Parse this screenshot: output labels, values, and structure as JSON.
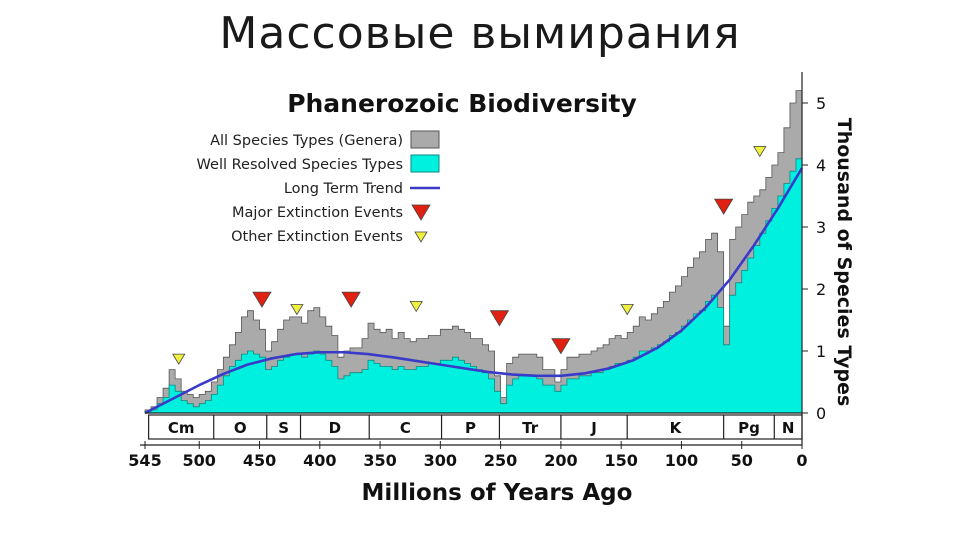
{
  "slide": {
    "title": "Массовые вымирания"
  },
  "chart_data": {
    "type": "area",
    "title": "Phanerozoic Biodiversity",
    "xlabel": "Millions of Years Ago",
    "ylabel": "Thousand of Species Types",
    "xlim": [
      545,
      0
    ],
    "ylim": [
      0,
      5.5
    ],
    "x_ticks": [
      545,
      500,
      450,
      400,
      350,
      300,
      250,
      200,
      150,
      100,
      50,
      0
    ],
    "y_ticks": [
      0,
      1,
      2,
      3,
      4,
      5
    ],
    "colors": {
      "all_genera": "#aaaaaa",
      "well_resolved": "#00f0e0",
      "trend": "#3a3ac8",
      "major": "#e02010",
      "other": "#f0f040"
    },
    "legend": [
      {
        "label": "All Species Types (Genera)",
        "kind": "all"
      },
      {
        "label": "Well Resolved Species Types",
        "kind": "resolved"
      },
      {
        "label": "Long Term Trend",
        "kind": "trend"
      },
      {
        "label": "Major Extinction Events",
        "kind": "major"
      },
      {
        "label": "Other Extinction Events",
        "kind": "other"
      }
    ],
    "periods": [
      {
        "label": "Cm",
        "start": 542,
        "end": 488
      },
      {
        "label": "O",
        "start": 488,
        "end": 444
      },
      {
        "label": "S",
        "start": 444,
        "end": 416
      },
      {
        "label": "D",
        "start": 416,
        "end": 359
      },
      {
        "label": "C",
        "start": 359,
        "end": 299
      },
      {
        "label": "P",
        "start": 299,
        "end": 251
      },
      {
        "label": "Tr",
        "start": 251,
        "end": 200
      },
      {
        "label": "J",
        "start": 200,
        "end": 145
      },
      {
        "label": "K",
        "start": 145,
        "end": 65
      },
      {
        "label": "Pg",
        "start": 65,
        "end": 23
      },
      {
        "label": "N",
        "start": 23,
        "end": 0
      }
    ],
    "series": [
      {
        "name": "All Species Types (Genera)",
        "kind": "all",
        "x": [
          545,
          540,
          535,
          530,
          525,
          520,
          515,
          510,
          505,
          500,
          495,
          490,
          485,
          480,
          475,
          470,
          465,
          460,
          455,
          450,
          445,
          440,
          435,
          430,
          425,
          420,
          415,
          410,
          405,
          400,
          395,
          390,
          385,
          380,
          375,
          370,
          365,
          360,
          355,
          350,
          345,
          340,
          335,
          330,
          325,
          320,
          315,
          310,
          305,
          300,
          295,
          290,
          285,
          280,
          275,
          270,
          265,
          260,
          255,
          250,
          245,
          240,
          235,
          230,
          225,
          220,
          215,
          210,
          205,
          200,
          195,
          190,
          185,
          180,
          175,
          170,
          165,
          160,
          155,
          150,
          145,
          140,
          135,
          130,
          125,
          120,
          115,
          110,
          105,
          100,
          95,
          90,
          85,
          80,
          75,
          70,
          65,
          60,
          55,
          50,
          45,
          40,
          35,
          30,
          25,
          20,
          15,
          10,
          5,
          0
        ],
        "y": [
          0.05,
          0.1,
          0.25,
          0.4,
          0.7,
          0.55,
          0.35,
          0.3,
          0.25,
          0.3,
          0.35,
          0.5,
          0.7,
          0.9,
          1.1,
          1.3,
          1.55,
          1.65,
          1.5,
          1.35,
          1.0,
          1.15,
          1.35,
          1.5,
          1.55,
          1.55,
          1.45,
          1.65,
          1.7,
          1.55,
          1.4,
          1.25,
          0.9,
          1.0,
          1.05,
          1.05,
          1.2,
          1.45,
          1.35,
          1.3,
          1.35,
          1.2,
          1.3,
          1.2,
          1.15,
          1.2,
          1.2,
          1.25,
          1.25,
          1.35,
          1.35,
          1.4,
          1.35,
          1.3,
          1.2,
          1.2,
          1.1,
          1.0,
          0.6,
          0.25,
          0.8,
          0.9,
          0.95,
          0.95,
          0.95,
          0.9,
          0.7,
          0.7,
          0.5,
          0.7,
          0.9,
          0.9,
          0.95,
          0.95,
          1.0,
          1.05,
          1.1,
          1.2,
          1.25,
          1.2,
          1.3,
          1.4,
          1.55,
          1.5,
          1.6,
          1.7,
          1.8,
          1.95,
          2.05,
          2.2,
          2.35,
          2.5,
          2.6,
          2.8,
          2.9,
          2.6,
          1.4,
          2.8,
          3.0,
          3.2,
          3.4,
          3.5,
          3.6,
          3.8,
          4.0,
          4.2,
          4.6,
          5.0,
          5.2,
          5.35
        ]
      },
      {
        "name": "Well Resolved Species Types",
        "kind": "resolved",
        "x": [
          545,
          540,
          535,
          530,
          525,
          520,
          515,
          510,
          505,
          500,
          495,
          490,
          485,
          480,
          475,
          470,
          465,
          460,
          455,
          450,
          445,
          440,
          435,
          430,
          425,
          420,
          415,
          410,
          405,
          400,
          395,
          390,
          385,
          380,
          375,
          370,
          365,
          360,
          355,
          350,
          345,
          340,
          335,
          330,
          325,
          320,
          315,
          310,
          305,
          300,
          295,
          290,
          285,
          280,
          275,
          270,
          265,
          260,
          255,
          250,
          245,
          240,
          235,
          230,
          225,
          220,
          215,
          210,
          205,
          200,
          195,
          190,
          185,
          180,
          175,
          170,
          165,
          160,
          155,
          150,
          145,
          140,
          135,
          130,
          125,
          120,
          115,
          110,
          105,
          100,
          95,
          90,
          85,
          80,
          75,
          70,
          65,
          60,
          55,
          50,
          45,
          40,
          35,
          30,
          25,
          20,
          15,
          10,
          5,
          0
        ],
        "y": [
          0.02,
          0.05,
          0.15,
          0.25,
          0.45,
          0.35,
          0.2,
          0.15,
          0.1,
          0.15,
          0.2,
          0.3,
          0.45,
          0.6,
          0.75,
          0.85,
          0.95,
          1.0,
          0.95,
          0.9,
          0.7,
          0.75,
          0.85,
          0.9,
          0.95,
          0.95,
          0.9,
          0.95,
          1.0,
          0.95,
          0.85,
          0.75,
          0.55,
          0.6,
          0.65,
          0.65,
          0.7,
          0.85,
          0.8,
          0.75,
          0.75,
          0.7,
          0.75,
          0.7,
          0.7,
          0.75,
          0.75,
          0.8,
          0.8,
          0.85,
          0.85,
          0.9,
          0.85,
          0.8,
          0.75,
          0.7,
          0.65,
          0.55,
          0.35,
          0.15,
          0.45,
          0.55,
          0.6,
          0.6,
          0.6,
          0.55,
          0.45,
          0.45,
          0.35,
          0.45,
          0.55,
          0.55,
          0.6,
          0.6,
          0.65,
          0.65,
          0.7,
          0.75,
          0.8,
          0.8,
          0.85,
          0.9,
          1.0,
          1.0,
          1.05,
          1.1,
          1.15,
          1.25,
          1.3,
          1.4,
          1.5,
          1.6,
          1.65,
          1.8,
          1.9,
          1.7,
          1.1,
          1.9,
          2.1,
          2.3,
          2.5,
          2.7,
          2.9,
          3.1,
          3.3,
          3.5,
          3.7,
          3.9,
          4.1,
          4.15
        ]
      },
      {
        "name": "Long Term Trend",
        "kind": "trend",
        "x": [
          545,
          520,
          500,
          480,
          460,
          440,
          420,
          400,
          380,
          360,
          340,
          320,
          300,
          280,
          260,
          240,
          220,
          200,
          180,
          160,
          140,
          120,
          100,
          80,
          60,
          40,
          20,
          0
        ],
        "y": [
          0.0,
          0.25,
          0.45,
          0.63,
          0.78,
          0.88,
          0.95,
          0.98,
          0.98,
          0.95,
          0.9,
          0.84,
          0.78,
          0.72,
          0.66,
          0.62,
          0.6,
          0.6,
          0.64,
          0.72,
          0.85,
          1.05,
          1.33,
          1.7,
          2.15,
          2.7,
          3.3,
          3.95
        ]
      }
    ],
    "events": [
      {
        "x": 517,
        "y": 0.95,
        "kind": "other"
      },
      {
        "x": 448,
        "y": 1.95,
        "kind": "major"
      },
      {
        "x": 419,
        "y": 1.75,
        "kind": "other"
      },
      {
        "x": 374,
        "y": 1.95,
        "kind": "major"
      },
      {
        "x": 320,
        "y": 1.8,
        "kind": "other"
      },
      {
        "x": 251,
        "y": 1.65,
        "kind": "major"
      },
      {
        "x": 200,
        "y": 1.2,
        "kind": "major"
      },
      {
        "x": 145,
        "y": 1.75,
        "kind": "other"
      },
      {
        "x": 65,
        "y": 3.45,
        "kind": "major"
      },
      {
        "x": 35,
        "y": 4.3,
        "kind": "other"
      }
    ]
  }
}
